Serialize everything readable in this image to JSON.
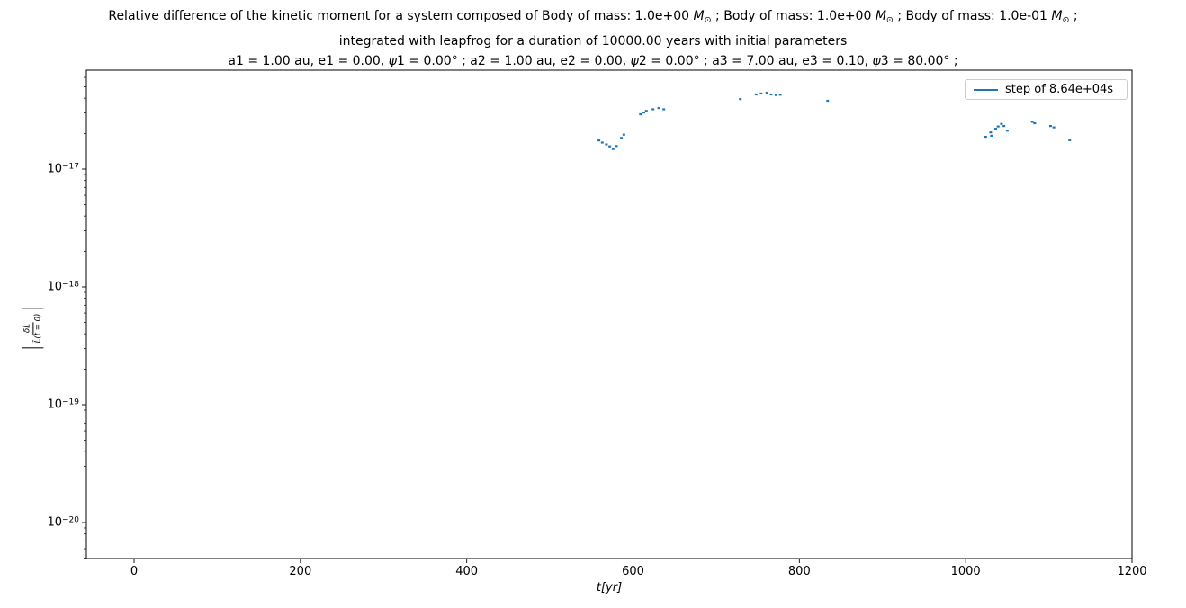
{
  "title": {
    "lines": [
      {
        "segments": [
          {
            "t": "Relative difference of the kinetic moment for a system composed of Body of mass: 1.0e+00 "
          },
          {
            "t": "M",
            "style": "italic"
          },
          {
            "t": "⊙",
            "style": "sub"
          },
          {
            "t": " ; Body of mass: 1.0e+00 "
          },
          {
            "t": "M",
            "style": "italic"
          },
          {
            "t": "⊙",
            "style": "sub"
          },
          {
            "t": " ; Body of mass: 1.0e-01 "
          },
          {
            "t": "M",
            "style": "italic"
          },
          {
            "t": "⊙",
            "style": "sub"
          },
          {
            "t": " ;"
          }
        ]
      },
      {
        "segments": [
          {
            "t": "integrated with leapfrog for a duration of 10000.00 years with initial parameters"
          }
        ]
      },
      {
        "segments": [
          {
            "t": "a1 = 1.00 au, e1 = 0.00, "
          },
          {
            "t": "ψ",
            "style": "italic"
          },
          {
            "t": "1 = 0.00° ; a2 = 1.00 au, e2 = 0.00, "
          },
          {
            "t": "ψ",
            "style": "italic"
          },
          {
            "t": "2 = 0.00° ; a3 = 7.00 au, e3 = 0.10, "
          },
          {
            "t": "ψ",
            "style": "italic"
          },
          {
            "t": "3 = 80.00° ;"
          }
        ]
      }
    ]
  },
  "legend": {
    "label": "step of 8.64e+04s",
    "line_color": "#1f77b4"
  },
  "axes": {
    "xlabel": "t[yr]",
    "ylabel": {
      "numerator": "δL̄",
      "denominator": "L̄(t = 0)"
    },
    "xticks": [
      0,
      200,
      400,
      600,
      800,
      1000,
      1200
    ],
    "yticks": [
      {
        "base": "10",
        "exp": "−17",
        "value": 1e-17
      },
      {
        "base": "10",
        "exp": "−18",
        "value": 1e-18
      },
      {
        "base": "10",
        "exp": "−19",
        "value": 1e-19
      },
      {
        "base": "10",
        "exp": "−20",
        "value": 1e-20
      }
    ]
  },
  "chart_data": {
    "type": "scatter",
    "title": "Relative difference of the kinetic moment for a system composed of Body of mass: 1.0e+00 M⊙ ; Body of mass: 1.0e+00 M⊙ ; Body of mass: 1.0e-01 M⊙ ; integrated with leapfrog for a duration of 10000.00 years with initial parameters a1 = 1.00 au, e1 = 0.00, ψ1 = 0.00° ; a2 = 1.00 au, e2 = 0.00, ψ2 = 0.00° ; a3 = 7.00 au, e3 = 0.10, ψ3 = 80.00° ;",
    "xlabel": "t [yr]",
    "ylabel": "|δL̄ / L̄(t=0)|",
    "xscale": "linear",
    "yscale": "log",
    "xlim": [
      -57,
      1199
    ],
    "ylim": [
      4.9e-21,
      6.9e-17
    ],
    "grid": false,
    "legend_position": "upper right",
    "marker_color": "#1f77b4",
    "series": [
      {
        "name": "step of 8.64e+04s",
        "color": "#1f77b4",
        "points": [
          [
            559,
            1.75e-17
          ],
          [
            563,
            1.68e-17
          ],
          [
            568,
            1.62e-17
          ],
          [
            572,
            1.56e-17
          ],
          [
            576,
            1.48e-17
          ],
          [
            580,
            1.57e-17
          ],
          [
            586,
            1.84e-17
          ],
          [
            589,
            1.96e-17
          ],
          [
            609,
            2.92e-17
          ],
          [
            613,
            3.02e-17
          ],
          [
            616,
            3.12e-17
          ],
          [
            624,
            3.22e-17
          ],
          [
            631,
            3.3e-17
          ],
          [
            637,
            3.22e-17
          ],
          [
            729,
            3.93e-17
          ],
          [
            748,
            4.3e-17
          ],
          [
            754,
            4.38e-17
          ],
          [
            761,
            4.45e-17
          ],
          [
            766,
            4.3e-17
          ],
          [
            772,
            4.25e-17
          ],
          [
            777,
            4.28e-17
          ],
          [
            834,
            3.8e-17
          ],
          [
            1024,
            1.88e-17
          ],
          [
            1030,
            2.05e-17
          ],
          [
            1031,
            1.92e-17
          ],
          [
            1036,
            2.2e-17
          ],
          [
            1039,
            2.3e-17
          ],
          [
            1043,
            2.42e-17
          ],
          [
            1046,
            2.32e-17
          ],
          [
            1050,
            2.12e-17
          ],
          [
            1080,
            2.52e-17
          ],
          [
            1083,
            2.45e-17
          ],
          [
            1102,
            2.32e-17
          ],
          [
            1106,
            2.26e-17
          ],
          [
            1125,
            1.76e-17
          ]
        ]
      }
    ]
  }
}
